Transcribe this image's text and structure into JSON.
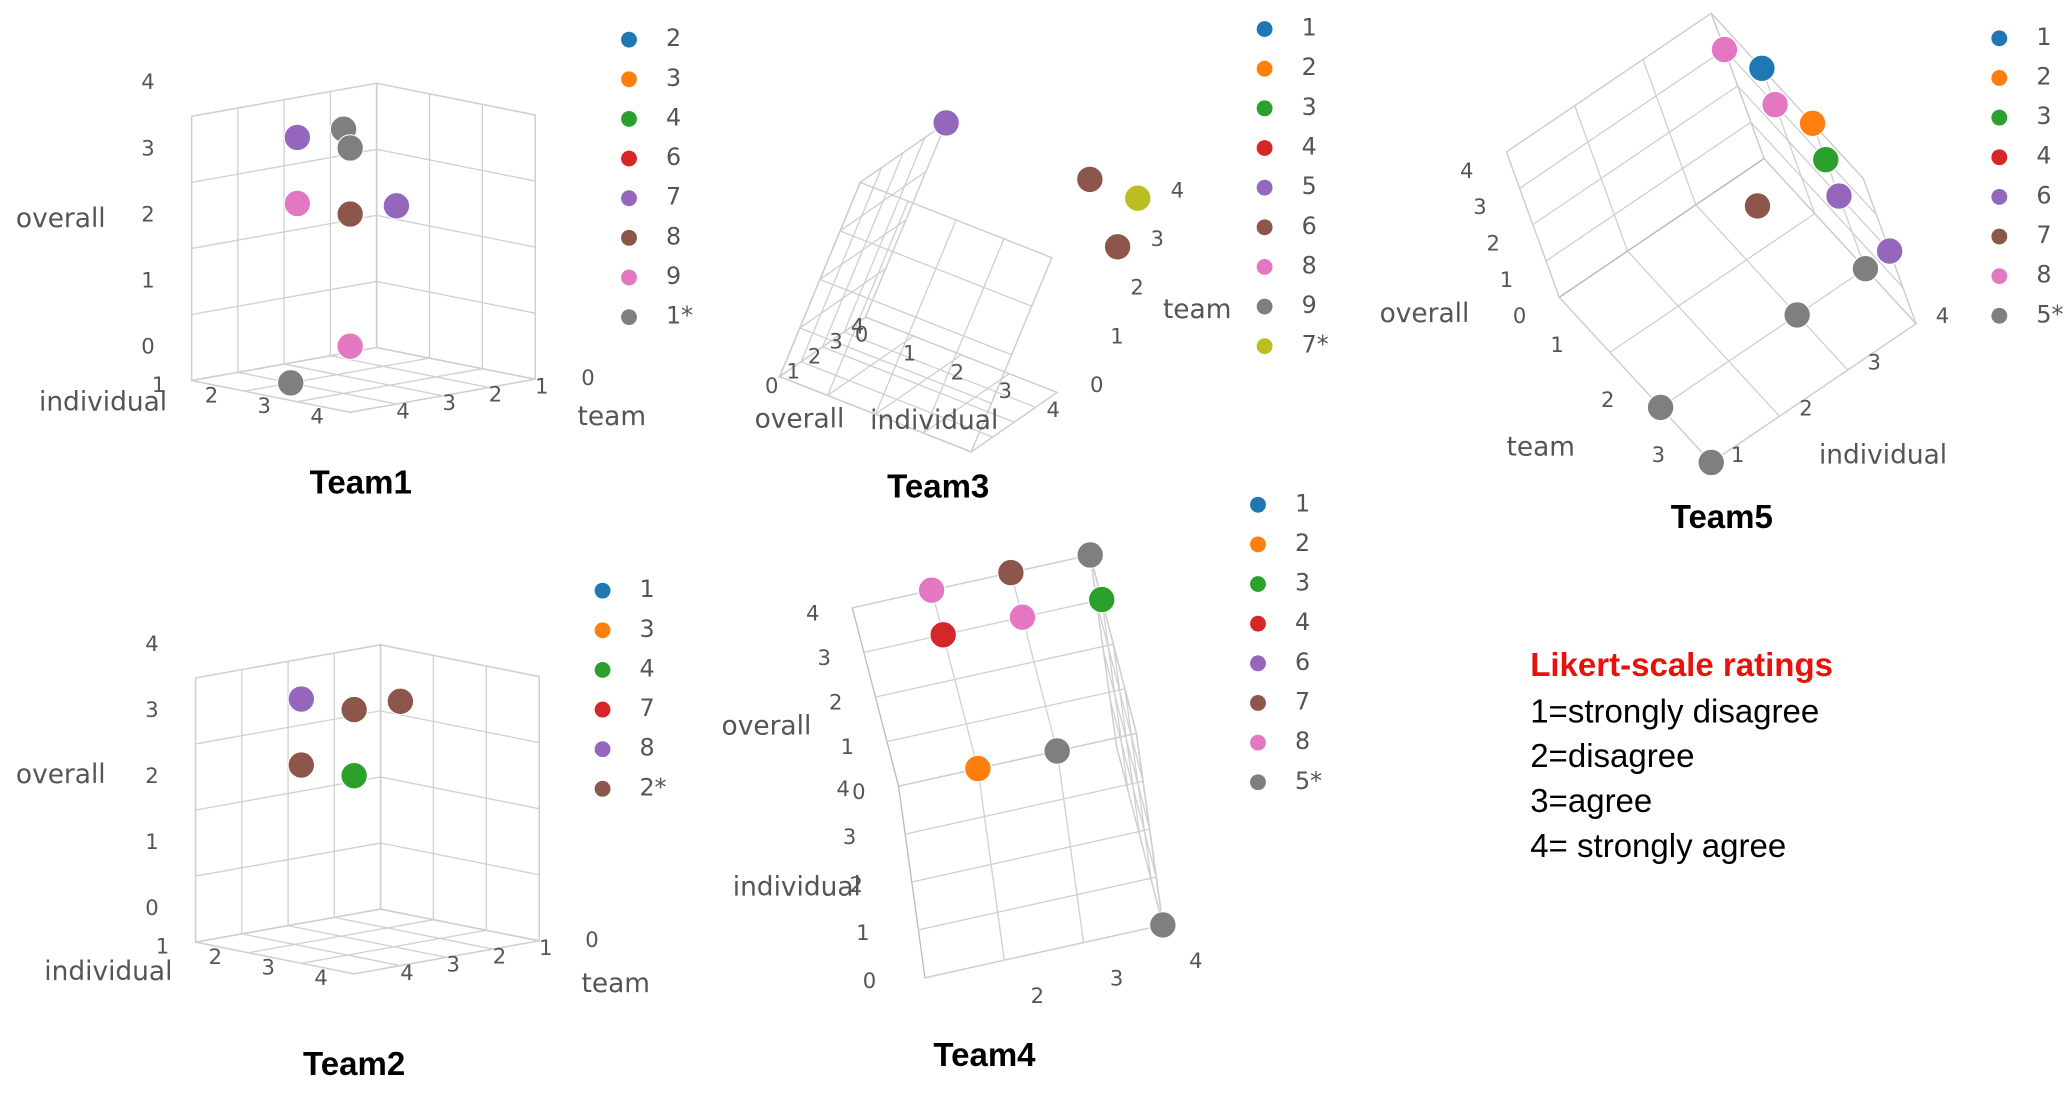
{
  "chart_data": [
    {
      "type": "scatter3d",
      "title": "Team1",
      "xlabel": "individual",
      "ylabel": "team",
      "zlabel": "overall",
      "xlim": [
        1,
        4
      ],
      "xticks": [
        1,
        2,
        3,
        4
      ],
      "ylim": [
        0,
        4
      ],
      "yticks": [
        0,
        1,
        2,
        3,
        4
      ],
      "zlim": [
        0,
        4
      ],
      "zticks": [
        0,
        1,
        2,
        3,
        4
      ],
      "series": [
        {
          "name": "2",
          "color": "#1f77b4",
          "x": [
            4
          ],
          "y": [
            4
          ],
          "z": [
            3
          ]
        },
        {
          "name": "3",
          "color": "#ff7f0e",
          "x": [
            4
          ],
          "y": [
            4
          ],
          "z": [
            3
          ]
        },
        {
          "name": "4",
          "color": "#2ca02c",
          "x": [
            4
          ],
          "y": [
            4
          ],
          "z": [
            3
          ]
        },
        {
          "name": "6",
          "color": "#d62728",
          "x": [
            4,
            4
          ],
          "y": [
            4,
            3
          ],
          "z": [
            4,
            3
          ]
        },
        {
          "name": "7",
          "color": "#9467bd",
          "x": [
            4,
            3,
            4
          ],
          "y": [
            4,
            4,
            3
          ],
          "z": [
            4,
            4,
            3
          ]
        },
        {
          "name": "8",
          "color": "#8c564b",
          "x": [
            4
          ],
          "y": [
            4
          ],
          "z": [
            3
          ]
        },
        {
          "name": "9",
          "color": "#e377c2",
          "x": [
            3,
            4
          ],
          "y": [
            4,
            4
          ],
          "z": [
            3,
            1
          ]
        },
        {
          "name": "1*",
          "color": "#7f7f7f",
          "x": [
            3,
            4,
            2
          ],
          "y": [
            3,
            4,
            3
          ],
          "z": [
            4,
            4,
            0
          ]
        }
      ]
    },
    {
      "type": "scatter3d",
      "title": "Team2",
      "xlabel": "individual",
      "ylabel": "team",
      "zlabel": "overall",
      "xlim": [
        1,
        4
      ],
      "xticks": [
        1,
        2,
        3,
        4
      ],
      "ylim": [
        0,
        4
      ],
      "yticks": [
        0,
        1,
        2,
        3,
        4
      ],
      "zlim": [
        0,
        4
      ],
      "zticks": [
        0,
        1,
        2,
        3,
        4
      ],
      "series": [
        {
          "name": "1",
          "color": "#1f77b4",
          "x": [
            4,
            4,
            4
          ],
          "y": [
            4,
            3,
            4
          ],
          "z": [
            4,
            4,
            3
          ]
        },
        {
          "name": "3",
          "color": "#ff7f0e",
          "x": [
            4
          ],
          "y": [
            4
          ],
          "z": [
            3
          ]
        },
        {
          "name": "4",
          "color": "#2ca02c",
          "x": [
            4
          ],
          "y": [
            4
          ],
          "z": [
            3
          ]
        },
        {
          "name": "7",
          "color": "#d62728",
          "x": [
            4
          ],
          "y": [
            4
          ],
          "z": [
            4
          ]
        },
        {
          "name": "8",
          "color": "#9467bd",
          "x": [
            3
          ],
          "y": [
            4
          ],
          "z": [
            4
          ]
        },
        {
          "name": "2*",
          "color": "#8c564b",
          "x": [
            4,
            3,
            4
          ],
          "y": [
            4,
            4,
            3
          ],
          "z": [
            4,
            3,
            4
          ]
        }
      ]
    },
    {
      "type": "scatter3d",
      "title": "Team3",
      "xlabel": "individual",
      "ylabel": "team",
      "zlabel": "overall",
      "xlim": [
        0,
        4
      ],
      "xticks": [
        0,
        1,
        2,
        3,
        4
      ],
      "ylim": [
        0,
        4
      ],
      "yticks": [
        0,
        1,
        2,
        3,
        4
      ],
      "zlim": [
        0,
        4
      ],
      "zticks": [
        0,
        1,
        2,
        3,
        4
      ],
      "series": [
        {
          "name": "1",
          "color": "#1f77b4",
          "x": [
            4
          ],
          "y": [
            4
          ],
          "z": [
            4
          ]
        },
        {
          "name": "2",
          "color": "#ff7f0e",
          "x": [
            4
          ],
          "y": [
            4
          ],
          "z": [
            4
          ]
        },
        {
          "name": "3",
          "color": "#2ca02c",
          "x": [
            4
          ],
          "y": [
            4
          ],
          "z": [
            4
          ]
        },
        {
          "name": "4",
          "color": "#d62728",
          "x": [
            4
          ],
          "y": [
            4
          ],
          "z": [
            4
          ]
        },
        {
          "name": "5",
          "color": "#9467bd",
          "x": [
            0,
            3
          ],
          "y": [
            4,
            4
          ],
          "z": [
            4,
            4
          ]
        },
        {
          "name": "6",
          "color": "#8c564b",
          "x": [
            3,
            4
          ],
          "y": [
            4,
            3
          ],
          "z": [
            4,
            4
          ]
        },
        {
          "name": "8",
          "color": "#e377c2",
          "x": [
            4
          ],
          "y": [
            4
          ],
          "z": [
            4
          ]
        },
        {
          "name": "9",
          "color": "#7f7f7f",
          "x": [
            4
          ],
          "y": [
            4
          ],
          "z": [
            4
          ]
        },
        {
          "name": "7*",
          "color": "#bcbd22",
          "x": [
            4
          ],
          "y": [
            4
          ],
          "z": [
            4
          ]
        }
      ]
    },
    {
      "type": "scatter3d",
      "title": "Team4",
      "xlabel": "individual",
      "zlabel": "overall",
      "xlim": [
        0,
        4
      ],
      "xticks": [
        0,
        1,
        2,
        3,
        4
      ],
      "ylim": [
        1,
        4
      ],
      "yticks": [
        2,
        3,
        4
      ],
      "zlim": [
        0,
        4
      ],
      "zticks": [
        0,
        1,
        2,
        3,
        4
      ],
      "series": [
        {
          "name": "1",
          "color": "#1f77b4",
          "x": [
            4,
            4
          ],
          "y": [
            3,
            3
          ],
          "z": [
            4,
            3
          ]
        },
        {
          "name": "2",
          "color": "#ff7f0e",
          "x": [
            4,
            4
          ],
          "y": [
            2,
            3
          ],
          "z": [
            0,
            3
          ]
        },
        {
          "name": "3",
          "color": "#2ca02c",
          "x": [
            4,
            4
          ],
          "y": [
            3,
            4
          ],
          "z": [
            3,
            3
          ]
        },
        {
          "name": "4",
          "color": "#d62728",
          "x": [
            4,
            4,
            4
          ],
          "y": [
            3,
            4,
            2
          ],
          "z": [
            4,
            4,
            3
          ]
        },
        {
          "name": "6",
          "color": "#9467bd",
          "x": [
            4,
            4,
            4
          ],
          "y": [
            2,
            3,
            4
          ],
          "z": [
            4,
            4,
            4
          ]
        },
        {
          "name": "7",
          "color": "#8c564b",
          "x": [
            4
          ],
          "y": [
            3
          ],
          "z": [
            4
          ]
        },
        {
          "name": "8",
          "color": "#e377c2",
          "x": [
            4,
            4
          ],
          "y": [
            3,
            2
          ],
          "z": [
            3,
            4
          ]
        },
        {
          "name": "5*",
          "color": "#7f7f7f",
          "x": [
            4,
            0,
            4
          ],
          "y": [
            3,
            4,
            4
          ],
          "z": [
            0,
            0,
            4
          ]
        }
      ]
    },
    {
      "type": "scatter3d",
      "title": "Team5",
      "xlabel": "individual",
      "ylabel": "team",
      "zlabel": "overall",
      "xlim": [
        1,
        4
      ],
      "xticks": [
        1,
        2,
        3,
        4
      ],
      "ylim": [
        0,
        3
      ],
      "yticks": [
        1,
        2,
        3
      ],
      "zlim": [
        0,
        4
      ],
      "zticks": [
        0,
        1,
        2,
        3,
        4
      ],
      "series": [
        {
          "name": "1",
          "color": "#1f77b4",
          "x": [
            4,
            4,
            4
          ],
          "y": [
            1,
            2,
            1
          ],
          "z": [
            4,
            3,
            3
          ]
        },
        {
          "name": "2",
          "color": "#ff7f0e",
          "x": [
            4,
            4
          ],
          "y": [
            1,
            2
          ],
          "z": [
            3,
            4
          ]
        },
        {
          "name": "3",
          "color": "#2ca02c",
          "x": [
            4
          ],
          "y": [
            2
          ],
          "z": [
            3
          ]
        },
        {
          "name": "4",
          "color": "#d62728",
          "x": [
            3
          ],
          "y": [
            2
          ],
          "z": [
            3
          ]
        },
        {
          "name": "6",
          "color": "#9467bd",
          "x": [
            4,
            4,
            3
          ],
          "y": [
            3,
            2,
            2
          ],
          "z": [
            2,
            2,
            3
          ]
        },
        {
          "name": "7",
          "color": "#8c564b",
          "x": [
            3
          ],
          "y": [
            2
          ],
          "z": [
            3
          ]
        },
        {
          "name": "8",
          "color": "#e377c2",
          "x": [
            4,
            4
          ],
          "y": [
            1,
            0
          ],
          "z": [
            3,
            3
          ]
        },
        {
          "name": "5*",
          "color": "#7f7f7f",
          "x": [
            1,
            1,
            1,
            3,
            4
          ],
          "y": [
            3,
            2,
            2,
            2,
            2
          ],
          "z": [
            0,
            0,
            0,
            0,
            0
          ]
        }
      ]
    }
  ],
  "note": {
    "title": "Likert-scale ratings",
    "lines": [
      "1=strongly disagree",
      "2=disagree",
      "3=agree",
      "4= strongly agree"
    ]
  }
}
